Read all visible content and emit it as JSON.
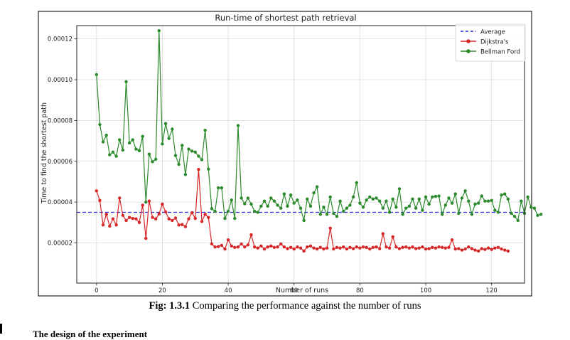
{
  "figure": {
    "caption_prefix": "Fig: 1.3.1",
    "caption_text": " Comparing the performance against the number of runs",
    "footer_text": "The design of the experiment"
  },
  "chart_data": {
    "type": "line",
    "title": "Run-time of shortest path retrieval",
    "xlabel": "Number of runs",
    "ylabel": "Time to find the shortest path",
    "xlim": [
      -6,
      130
    ],
    "ylim": [
      3e-07,
      0.0001265
    ],
    "xticks": [
      0,
      20,
      40,
      60,
      80,
      100,
      120
    ],
    "xtick_labels": [
      "0",
      "20",
      "40",
      "60",
      "80",
      "100",
      "120"
    ],
    "yticks": [
      2e-05,
      4e-05,
      6e-05,
      8e-05,
      0.0001,
      0.00012
    ],
    "ytick_labels": [
      "0.00002",
      "0.00004",
      "0.00006",
      "0.00008",
      "0.00010",
      "0.00012"
    ],
    "grid": true,
    "legend_position": "top-right",
    "average": {
      "name": "Average",
      "value": 3.5e-05,
      "color": "#2a2adb"
    },
    "series": [
      {
        "name": "Dijkstra's",
        "color": "#d62728",
        "values": [
          4.55e-05,
          4.08e-05,
          2.88e-05,
          3.4e-05,
          2.82e-05,
          3.18e-05,
          2.88e-05,
          4.2e-05,
          3.35e-05,
          3.1e-05,
          3.25e-05,
          3.2e-05,
          3.18e-05,
          3e-05,
          3.85e-05,
          2.22e-05,
          4.05e-05,
          3.25e-05,
          3.18e-05,
          3.42e-05,
          3.9e-05,
          3.52e-05,
          3.18e-05,
          3.1e-05,
          3.22e-05,
          2.88e-05,
          2.9e-05,
          2.8e-05,
          3.18e-05,
          3.48e-05,
          3.2e-05,
          5.6e-05,
          3.05e-05,
          3.4e-05,
          3.25e-05,
          1.95e-05,
          1.8e-05,
          1.82e-05,
          1.88e-05,
          1.7e-05,
          2.15e-05,
          1.85e-05,
          1.78e-05,
          1.8e-05,
          1.95e-05,
          1.8e-05,
          1.9e-05,
          2.4e-05,
          1.8e-05,
          1.75e-05,
          1.85e-05,
          1.7e-05,
          1.8e-05,
          1.85e-05,
          1.78e-05,
          1.8e-05,
          1.95e-05,
          1.8e-05,
          1.72e-05,
          1.78e-05,
          1.7e-05,
          1.8e-05,
          1.75e-05,
          1.6e-05,
          1.8e-05,
          1.85e-05,
          1.75e-05,
          1.7e-05,
          1.78e-05,
          1.7e-05,
          1.75e-05,
          2.72e-05,
          1.7e-05,
          1.78e-05,
          1.75e-05,
          1.8e-05,
          1.7e-05,
          1.78e-05,
          1.72e-05,
          1.8e-05,
          1.75e-05,
          1.8e-05,
          1.78e-05,
          1.7e-05,
          1.78e-05,
          1.8e-05,
          1.72e-05,
          2.45e-05,
          1.8e-05,
          1.75e-05,
          2.3e-05,
          1.8e-05,
          1.72e-05,
          1.78e-05,
          1.8e-05,
          1.75e-05,
          1.8e-05,
          1.72e-05,
          1.75e-05,
          1.8e-05,
          1.7e-05,
          1.72e-05,
          1.78e-05,
          1.75e-05,
          1.8e-05,
          1.78e-05,
          1.75e-05,
          1.78e-05,
          2.15e-05,
          1.7e-05,
          1.72e-05,
          1.65e-05,
          1.7e-05,
          1.8e-05,
          1.72e-05,
          1.65e-05,
          1.6e-05,
          1.72e-05,
          1.68e-05,
          1.75e-05,
          1.68e-05,
          1.75e-05,
          1.78e-05,
          1.7e-05,
          1.65e-05,
          1.6e-05
        ]
      },
      {
        "name": "Bellman Ford",
        "color": "#2b8a2b",
        "values": [
          0.0001025,
          7.8e-05,
          6.95e-05,
          7.28e-05,
          6.32e-05,
          6.45e-05,
          6.25e-05,
          7.05e-05,
          6.55e-05,
          9.9e-05,
          6.9e-05,
          7.05e-05,
          6.6e-05,
          6.52e-05,
          7.22e-05,
          4e-05,
          6.35e-05,
          5.98e-05,
          6.1e-05,
          0.000124,
          6.85e-05,
          7.85e-05,
          7.12e-05,
          7.58e-05,
          6.28e-05,
          5.85e-05,
          6.78e-05,
          5.35e-05,
          6.6e-05,
          6.5e-05,
          6.45e-05,
          6.25e-05,
          6.08e-05,
          7.52e-05,
          5.62e-05,
          3.68e-05,
          3.55e-05,
          4.7e-05,
          4.7e-05,
          3.2e-05,
          3.55e-05,
          4.1e-05,
          3.2e-05,
          7.75e-05,
          4.2e-05,
          3.92e-05,
          4.2e-05,
          3.9e-05,
          3.55e-05,
          3.5e-05,
          3.8e-05,
          4.05e-05,
          3.8e-05,
          4.2e-05,
          4.05e-05,
          3.85e-05,
          3.7e-05,
          4.4e-05,
          3.8e-05,
          4.35e-05,
          3.95e-05,
          4.1e-05,
          3.7e-05,
          3.1e-05,
          4.15e-05,
          3.8e-05,
          4.45e-05,
          4.75e-05,
          3.4e-05,
          3.75e-05,
          3.4e-05,
          4.25e-05,
          3.45e-05,
          3.3e-05,
          4.05e-05,
          3.55e-05,
          3.7e-05,
          3.85e-05,
          4.25e-05,
          4.95e-05,
          3.95e-05,
          3.75e-05,
          4.1e-05,
          4.25e-05,
          4.15e-05,
          4.2e-05,
          4.05e-05,
          3.7e-05,
          4.05e-05,
          3.5e-05,
          4.15e-05,
          3.75e-05,
          4.65e-05,
          3.4e-05,
          3.7e-05,
          3.8e-05,
          4.15e-05,
          3.7e-05,
          4.15e-05,
          3.6e-05,
          4.25e-05,
          3.9e-05,
          4.25e-05,
          4.28e-05,
          4.3e-05,
          3.4e-05,
          3.85e-05,
          4.2e-05,
          3.95e-05,
          4.4e-05,
          3.45e-05,
          4.2e-05,
          4.55e-05,
          4.05e-05,
          3.4e-05,
          3.9e-05,
          3.95e-05,
          4.3e-05,
          4.05e-05,
          4.05e-05,
          4.08e-05,
          3.6e-05,
          3.5e-05,
          4.35e-05,
          4.4e-05,
          4.15e-05,
          3.45e-05,
          3.3e-05,
          3.1e-05,
          4.05e-05,
          3.45e-05,
          4.25e-05,
          3.75e-05,
          3.7e-05,
          3.35e-05,
          3.4e-05
        ]
      }
    ]
  }
}
